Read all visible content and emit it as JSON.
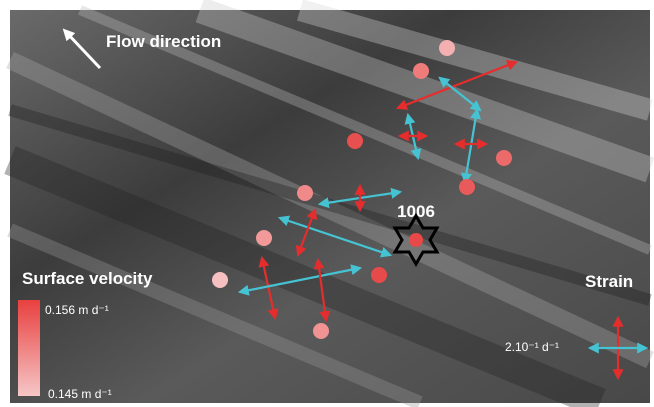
{
  "flow_label": "Flow direction",
  "site_label": "1006",
  "velocity_legend": {
    "title": "Surface velocity",
    "max_label": "0.156 m d⁻¹",
    "min_label": "0.145 m d⁻¹"
  },
  "strain_legend": {
    "title": "Strain",
    "scale_label": "2.10⁻¹ d⁻¹"
  }
}
